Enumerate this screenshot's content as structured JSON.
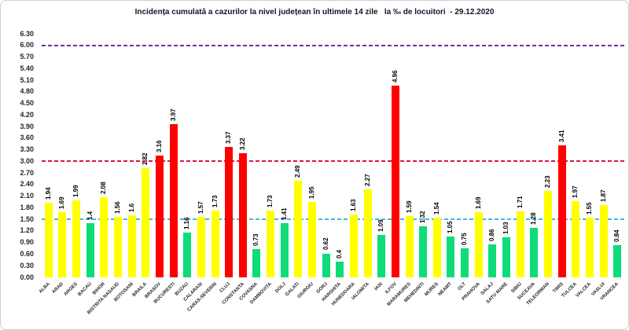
{
  "chart_data": {
    "type": "bar",
    "title": "Incidența cumulată a cazurilor la nivel județean în ultimele 14 zile   la ‰ de locuitori  - 29.12.2020",
    "xlabel": "",
    "ylabel": "",
    "ylim": [
      0,
      6.3
    ],
    "ytick_step": 0.3,
    "ytick_labels": [
      "0.00",
      "0.30",
      "0.60",
      "0.90",
      "1.20",
      "1.50",
      "1.80",
      "2.10",
      "2.40",
      "2.70",
      "3.00",
      "3.30",
      "3.60",
      "3.90",
      "4.20",
      "4.50",
      "4.80",
      "5.10",
      "5.40",
      "5.70",
      "6.00",
      "6.30"
    ],
    "grid": "off",
    "legend": "none",
    "categories": [
      "ALBA",
      "ARAD",
      "ARGES",
      "BACAU",
      "BIHOR",
      "BISTRITA NASAUD",
      "BOTOSANI",
      "BRAILA",
      "BRASOV",
      "BUCURESTI",
      "BUZAU",
      "CALARASI",
      "CARAS-SEVERIN",
      "CLUJ",
      "CONSTANTA",
      "COVASNA",
      "DAMBOVITA",
      "DOLJ",
      "GALATI",
      "GIURGIU",
      "GORJ",
      "HARGHITA",
      "HUNEDOARA",
      "IALOMITA",
      "IASI",
      "ILFOV",
      "MARAMURES",
      "MEHEDINTI",
      "MURES",
      "NEAMT",
      "OLT",
      "PRAHOVA",
      "SALAJ",
      "SATU MARE",
      "SIBIU",
      "SUCEAVA",
      "TELEORMAN",
      "TIMIS",
      "TULCEA",
      "VALCEA",
      "VASLUI",
      "VRANCEA"
    ],
    "values": [
      1.94,
      1.69,
      1.99,
      1.4,
      2.08,
      1.56,
      1.6,
      2.82,
      3.16,
      3.97,
      1.16,
      1.57,
      1.73,
      3.37,
      3.22,
      0.73,
      1.73,
      1.41,
      2.49,
      1.95,
      0.62,
      0.4,
      1.63,
      2.27,
      1.09,
      4.96,
      1.59,
      1.32,
      1.54,
      1.05,
      0.75,
      1.69,
      0.86,
      1.03,
      1.71,
      1.28,
      2.23,
      3.41,
      1.97,
      1.55,
      1.87,
      0.84
    ],
    "value_labels": [
      "1.94",
      "1.69",
      "1.99",
      "1.4",
      "2.08",
      "1.56",
      "1.6",
      "2.82",
      "3.16",
      "3.97",
      "1.16",
      "1.57",
      "1.73",
      "3.37",
      "3.22",
      "0.73",
      "1.73",
      "1.41",
      "2.49",
      "1.95",
      "0.62",
      "0.4",
      "1.63",
      "2.27",
      "1.09",
      "4.96",
      "1.59",
      "1.32",
      "1.54",
      "1.05",
      "0.75",
      "1.69",
      "0.86",
      "1.03",
      "1.71",
      "1.28",
      "2.23",
      "3.41",
      "1.97",
      "1.55",
      "1.87",
      "0.84"
    ],
    "bar_colors": [
      "yellow",
      "yellow",
      "yellow",
      "green",
      "yellow",
      "yellow",
      "yellow",
      "yellow",
      "red",
      "red",
      "green",
      "yellow",
      "yellow",
      "red",
      "red",
      "green",
      "yellow",
      "green",
      "yellow",
      "yellow",
      "green",
      "green",
      "yellow",
      "yellow",
      "green",
      "red",
      "yellow",
      "green",
      "yellow",
      "green",
      "green",
      "yellow",
      "green",
      "green",
      "yellow",
      "green",
      "yellow",
      "red",
      "yellow",
      "yellow",
      "yellow",
      "green"
    ],
    "reference_lines": [
      {
        "value": 1.5,
        "color": "#41B8E6",
        "style": "dashed"
      },
      {
        "value": 3.0,
        "color": "#E1143C",
        "style": "dashed"
      },
      {
        "value": 6.0,
        "color": "#7030A0",
        "style": "dashed"
      }
    ]
  },
  "palette": {
    "yellow": "#FFFF00",
    "green": "#0FDC78",
    "red": "#FF0000",
    "title_text": "#14142B",
    "axis_text": "#262626",
    "frame_border": "#CFCFCF",
    "background": "#FFFFFF"
  }
}
